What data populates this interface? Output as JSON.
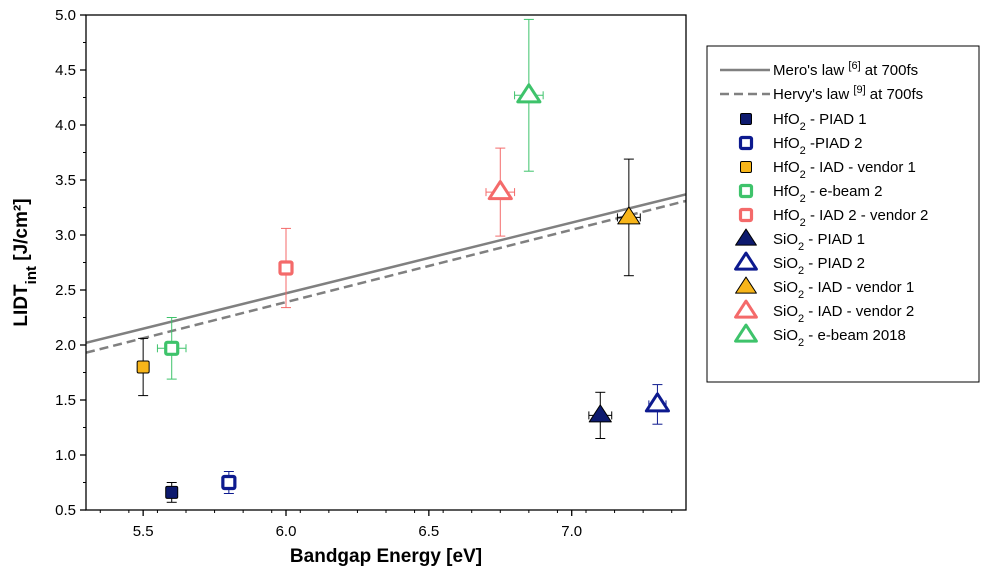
{
  "chart_data": {
    "type": "scatter",
    "xlabel": "Bandgap Energy [eV]",
    "ylabel": {
      "main": "LIDT",
      "sub": "int",
      "unit": " [J/cm²]"
    },
    "xlim": [
      5.3,
      7.4
    ],
    "ylim": [
      0.5,
      5.0
    ],
    "xticks": [
      "5.5",
      "6.0",
      "6.5",
      "7.0"
    ],
    "yticks": [
      "0.5",
      "1.0",
      "1.5",
      "2.0",
      "2.5",
      "3.0",
      "3.5",
      "4.0",
      "4.5",
      "5.0"
    ],
    "lines": [
      {
        "label": "Mero's law",
        "ref": "[6]",
        "suffix": " at 700fs",
        "style": "solid",
        "color": "#808080",
        "points": [
          [
            5.3,
            2.02
          ],
          [
            7.4,
            3.37
          ]
        ]
      },
      {
        "label": "Hervy's law",
        "ref": "[9]",
        "suffix": " at 700fs",
        "style": "dashed",
        "color": "#808080",
        "points": [
          [
            5.3,
            1.93
          ],
          [
            7.4,
            3.31
          ]
        ]
      }
    ],
    "series": [
      {
        "mat": "HfO",
        "sub": "2",
        "rest": " - PIAD 1",
        "marker": "square",
        "filled": true,
        "color": "#0d1a6e",
        "x": 5.6,
        "y": 0.66,
        "yerr": 0.09,
        "xerr": 0
      },
      {
        "mat": "HfO",
        "sub": "2",
        "rest": " -PIAD 2",
        "marker": "square",
        "filled": false,
        "color": "#0d1a8f",
        "x": 5.8,
        "y": 0.75,
        "yerr": 0.1,
        "xerr": 0
      },
      {
        "mat": "HfO",
        "sub": "2",
        "rest": " - IAD - vendor 1",
        "marker": "square",
        "filled": true,
        "color": "#f7b51a",
        "x": 5.5,
        "y": 1.8,
        "yerr": 0.26,
        "xerr": 0
      },
      {
        "mat": "HfO",
        "sub": "2",
        "rest": " - e-beam 2",
        "marker": "square",
        "filled": false,
        "color": "#3ec36b",
        "x": 5.6,
        "y": 1.97,
        "yerr": 0.28,
        "xerr": 0.05
      },
      {
        "mat": "HfO",
        "sub": "2",
        "rest": " - IAD 2 - vendor 2",
        "marker": "square",
        "filled": false,
        "color": "#f46a6a",
        "x": 6.0,
        "y": 2.7,
        "yerr": 0.36,
        "xerr": 0
      },
      {
        "mat": "SiO",
        "sub": "2",
        "rest": " - PIAD 1",
        "marker": "triangle",
        "filled": true,
        "color": "#0d1a6e",
        "x": 7.1,
        "y": 1.36,
        "yerr": 0.21,
        "xerr": 0.04
      },
      {
        "mat": "SiO",
        "sub": "2",
        "rest": " - PIAD 2",
        "marker": "triangle",
        "filled": false,
        "color": "#0d1a8f",
        "x": 7.3,
        "y": 1.46,
        "yerr": 0.18,
        "xerr": 0.03
      },
      {
        "mat": "SiO",
        "sub": "2",
        "rest": " - IAD - vendor 1",
        "marker": "triangle",
        "filled": true,
        "color": "#f7b51a",
        "x": 7.2,
        "y": 3.16,
        "yerr": 0.53,
        "xerr": 0.04
      },
      {
        "mat": "SiO",
        "sub": "2",
        "rest": " - IAD - vendor 2",
        "marker": "triangle",
        "filled": false,
        "color": "#f46a6a",
        "x": 6.75,
        "y": 3.39,
        "yerr": 0.4,
        "xerr": 0.05
      },
      {
        "mat": "SiO",
        "sub": "2",
        "rest": " - e-beam 2018",
        "marker": "triangle",
        "filled": false,
        "color": "#3ec36b",
        "x": 6.85,
        "y": 4.27,
        "yerr": 0.69,
        "xerr": 0.05
      }
    ],
    "legend_position": "right"
  }
}
